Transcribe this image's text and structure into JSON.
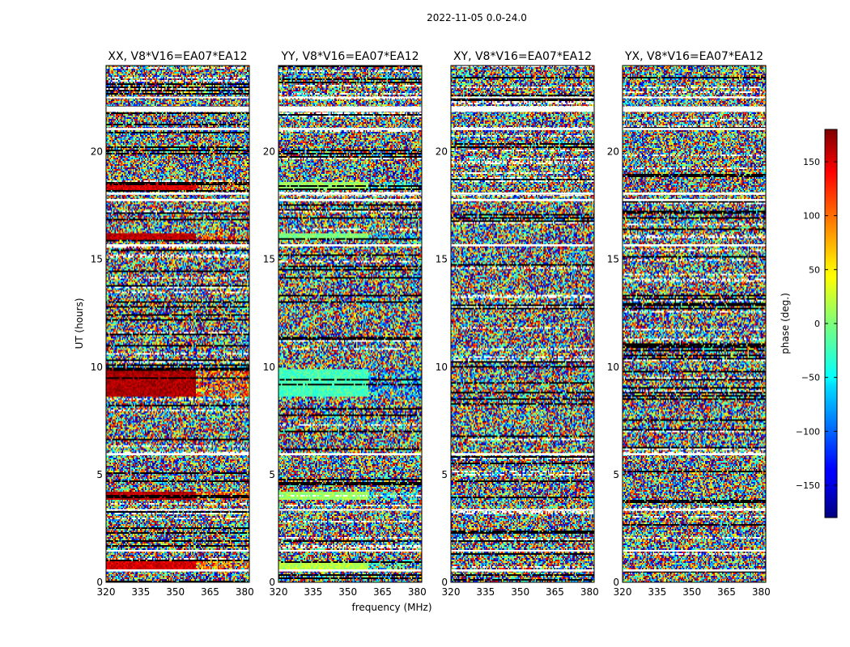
{
  "chart_data": {
    "type": "heatmap",
    "suptitle": "2022-11-05 0.0-24.0",
    "ylabel": "UT (hours)",
    "xlabel": "frequency (MHz)",
    "ylim": [
      0,
      24
    ],
    "xlim": [
      320,
      382
    ],
    "yticks": [
      0,
      5,
      10,
      15,
      20
    ],
    "xticks": [
      320,
      335,
      350,
      365,
      380
    ],
    "panels": [
      {
        "title": "XX, V8*V16=EA07*EA12",
        "corr": "XX"
      },
      {
        "title": "YY, V8*V16=EA07*EA12",
        "corr": "YY"
      },
      {
        "title": "XY, V8*V16=EA07*EA12",
        "corr": "XY"
      },
      {
        "title": "YX, V8*V16=EA07*EA12",
        "corr": "YX"
      }
    ],
    "colorbar": {
      "label": "phase (deg.)",
      "range": [
        -180,
        180
      ],
      "ticks": [
        150,
        100,
        50,
        0,
        -50,
        -100,
        -150
      ],
      "tick_labels": [
        "150",
        "100",
        "50",
        "0",
        "−50",
        "−100",
        "−150"
      ],
      "colormap": "jet"
    },
    "flag_bands_hours": [
      [
        0.5,
        0.6
      ],
      [
        1.45,
        1.5
      ],
      [
        3.35,
        3.4
      ],
      [
        5.9,
        6.0
      ],
      [
        15.6,
        15.7
      ],
      [
        17.7,
        17.8
      ],
      [
        18.0,
        18.1
      ],
      [
        21.0,
        21.1
      ],
      [
        21.85,
        22.1
      ],
      [
        22.5,
        22.55
      ]
    ],
    "coherent_bands_hours": [
      {
        "t": [
          0.6,
          1.0
        ],
        "XX": 150,
        "YY": 20
      },
      {
        "t": [
          3.8,
          4.2
        ],
        "XX": 160,
        "YY": 10
      },
      {
        "t": [
          8.6,
          9.9
        ],
        "XX": 165,
        "YY": -20
      },
      {
        "t": [
          15.9,
          16.2
        ],
        "XX": 160,
        "YY": 0
      },
      {
        "t": [
          18.2,
          18.6
        ],
        "XX": 150,
        "YY": 10
      }
    ]
  }
}
